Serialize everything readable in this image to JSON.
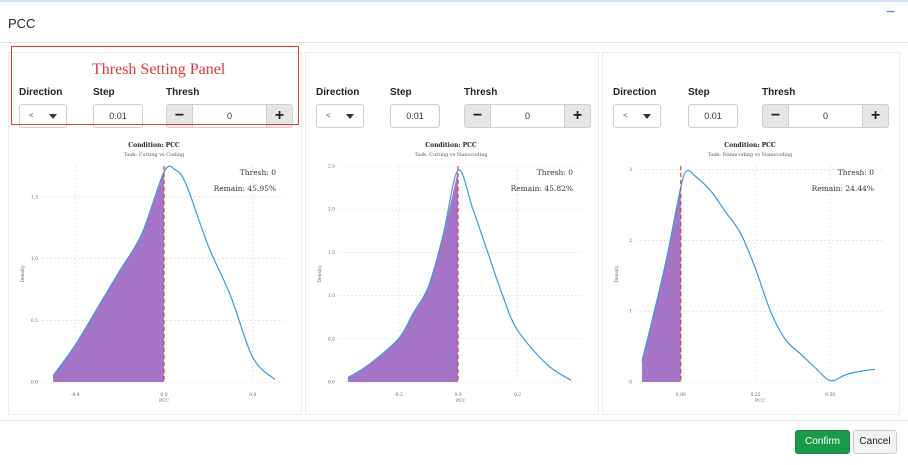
{
  "dialog": {
    "title": "PCC",
    "minimize_icon": "minus-icon"
  },
  "annotation": {
    "label": "Thresh Setting Panel",
    "color": "#e53935"
  },
  "labels": {
    "direction": "Direction",
    "step": "Step",
    "thresh": "Thresh"
  },
  "panels": [
    {
      "direction": "<",
      "step": "0.01",
      "thresh": "0",
      "minus": "−",
      "plus": "+",
      "chart": {
        "title": "Condition: PCC",
        "subtitle": "Task: Cutting vs Coding",
        "thresh_text": "Thresh: 0",
        "remain_text": "Remain: 45.95%",
        "ylabel": "Density",
        "xlabel": "PCC",
        "yticks": [
          "1.5",
          "1.0",
          "0.5",
          "0.0"
        ],
        "xticks": [
          "-0.4",
          "0.0",
          "0.4"
        ]
      }
    },
    {
      "direction": "<",
      "step": "0.01",
      "thresh": "0",
      "minus": "−",
      "plus": "+",
      "chart": {
        "title": "Condition: PCC",
        "subtitle": "Task: Cutting vs Nanocoding",
        "thresh_text": "Thresh: 0",
        "remain_text": "Remain: 45.82%",
        "ylabel": "Density",
        "xlabel": "PCC",
        "yticks": [
          "2.5",
          "2.0",
          "1.5",
          "1.0",
          "0.5",
          "0.0"
        ],
        "xticks": [
          "-0.2",
          "0.0",
          "0.2"
        ]
      }
    },
    {
      "direction": "<",
      "step": "0.01",
      "thresh": "0",
      "minus": "−",
      "plus": "+",
      "chart": {
        "title": "Condition: PCC",
        "subtitle": "Task: Nanocoding vs Nanocoding",
        "thresh_text": "Thresh: 0",
        "remain_text": "Remain: 24.44%",
        "ylabel": "Density",
        "xlabel": "PCC",
        "yticks": [
          "3",
          "2",
          "1",
          "0"
        ],
        "xticks": [
          "0.00",
          "0.25",
          "0.50"
        ]
      }
    }
  ],
  "chart_data": [
    {
      "type": "area",
      "title": "Condition: PCC",
      "subtitle": "Task: Cutting vs Coding",
      "xlabel": "PCC",
      "ylabel": "Density",
      "threshold": 0,
      "xlim": [
        -0.55,
        0.55
      ],
      "ylim": [
        0,
        1.75
      ],
      "x": [
        -0.5,
        -0.4,
        -0.3,
        -0.2,
        -0.1,
        0.0,
        0.05,
        0.1,
        0.2,
        0.3,
        0.4,
        0.5
      ],
      "y": [
        0.05,
        0.3,
        0.6,
        0.9,
        1.2,
        1.7,
        1.72,
        1.6,
        1.1,
        0.7,
        0.2,
        0.02
      ]
    },
    {
      "type": "area",
      "title": "Condition: PCC",
      "subtitle": "Task: Cutting vs Nanocoding",
      "xlabel": "PCC",
      "ylabel": "Density",
      "threshold": 0,
      "xlim": [
        -0.4,
        0.42
      ],
      "ylim": [
        0,
        2.5
      ],
      "x": [
        -0.37,
        -0.3,
        -0.2,
        -0.15,
        -0.1,
        -0.05,
        0.0,
        0.05,
        0.1,
        0.15,
        0.2,
        0.3,
        0.38
      ],
      "y": [
        0.05,
        0.2,
        0.5,
        0.8,
        1.1,
        1.7,
        2.45,
        2.0,
        1.5,
        1.0,
        0.6,
        0.2,
        0.02
      ]
    },
    {
      "type": "area",
      "title": "Condition: PCC",
      "subtitle": "Task: Nanocoding vs Nanocoding",
      "xlabel": "PCC",
      "ylabel": "Density",
      "threshold": 0,
      "xlim": [
        -0.15,
        0.68
      ],
      "ylim": [
        0,
        3.05
      ],
      "x": [
        -0.13,
        -0.1,
        -0.05,
        0.0,
        0.02,
        0.05,
        0.1,
        0.15,
        0.2,
        0.25,
        0.3,
        0.35,
        0.4,
        0.45,
        0.5,
        0.55,
        0.6,
        0.65
      ],
      "y": [
        0.3,
        0.8,
        1.7,
        2.75,
        2.98,
        2.9,
        2.7,
        2.4,
        2.1,
        1.6,
        1.0,
        0.6,
        0.4,
        0.2,
        0.02,
        0.1,
        0.15,
        0.18
      ]
    }
  ],
  "footer": {
    "confirm": "Confirm",
    "cancel": "Cancel"
  },
  "colors": {
    "fill": "#a775c8",
    "line": "#3a9bdc",
    "threshold_line": "#e53935",
    "confirm": "#1a9b48"
  }
}
